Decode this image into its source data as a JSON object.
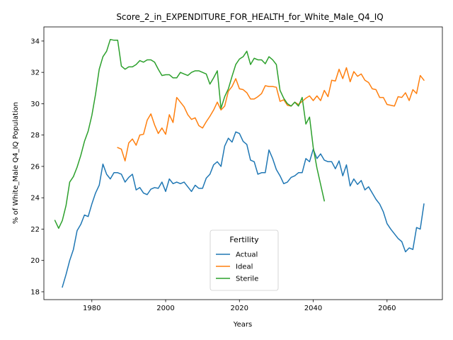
{
  "chart_data": {
    "type": "line",
    "title": "Score_2_in_EXPENDITURE_FOR_HEALTH_for_White_Male_Q4_IQ",
    "xlabel": "Years",
    "ylabel": "% of White_Male Q4_IQ Population",
    "xlim": [
      1967,
      2075
    ],
    "ylim": [
      17.5,
      34.9
    ],
    "xticks": [
      1980,
      2000,
      2020,
      2040,
      2060
    ],
    "yticks": [
      18,
      20,
      22,
      24,
      26,
      28,
      30,
      32,
      34
    ],
    "grid": false,
    "legend": {
      "title": "Fertility",
      "placement": "lower-center"
    },
    "series": [
      {
        "name": "Actual",
        "color": "#1f77b4",
        "x": [
          1972,
          1973,
          1974,
          1975,
          1976,
          1977,
          1978,
          1979,
          1980,
          1981,
          1982,
          1983,
          1984,
          1985,
          1986,
          1987,
          1988,
          1989,
          1990,
          1991,
          1992,
          1993,
          1994,
          1995,
          1996,
          1997,
          1998,
          1999,
          2000,
          2001,
          2002,
          2003,
          2004,
          2005,
          2006,
          2007,
          2008,
          2009,
          2010,
          2011,
          2012,
          2013,
          2014,
          2015,
          2016,
          2017,
          2018,
          2019,
          2020,
          2021,
          2022,
          2023,
          2024,
          2025,
          2026,
          2027,
          2028,
          2029,
          2030,
          2031,
          2032,
          2033,
          2034,
          2035,
          2036,
          2037,
          2038,
          2039,
          2040,
          2041,
          2042,
          2043,
          2044,
          2045,
          2046,
          2047,
          2048,
          2049,
          2050,
          2051,
          2052,
          2053,
          2054,
          2055,
          2056,
          2057,
          2058,
          2059,
          2060,
          2061,
          2062,
          2063,
          2064,
          2065,
          2066,
          2067,
          2068,
          2069,
          2070
        ],
        "values": [
          18.3,
          19.1,
          20.0,
          20.7,
          21.9,
          22.3,
          22.9,
          22.8,
          23.6,
          24.3,
          24.8,
          26.15,
          25.5,
          25.2,
          25.6,
          25.6,
          25.5,
          25.0,
          25.3,
          25.5,
          24.5,
          24.65,
          24.3,
          24.2,
          24.55,
          24.65,
          24.6,
          25.0,
          24.4,
          25.2,
          24.9,
          25.0,
          24.9,
          25.0,
          24.7,
          24.4,
          24.8,
          24.6,
          24.6,
          25.25,
          25.5,
          26.1,
          26.3,
          26.0,
          27.3,
          27.8,
          27.55,
          28.2,
          28.1,
          27.6,
          27.4,
          26.4,
          26.3,
          25.5,
          25.6,
          25.6,
          27.05,
          26.5,
          25.8,
          25.4,
          24.9,
          25.0,
          25.3,
          25.4,
          25.6,
          25.6,
          26.5,
          26.3,
          27.1,
          26.5,
          26.8,
          26.4,
          26.3,
          26.3,
          25.85,
          26.35,
          25.4,
          26.1,
          24.75,
          25.2,
          24.85,
          25.1,
          24.5,
          24.7,
          24.3,
          23.9,
          23.6,
          23.1,
          22.35,
          22.0,
          21.7,
          21.4,
          21.2,
          20.55,
          20.8,
          20.7,
          22.1,
          22.0,
          23.6
        ]
      },
      {
        "name": "Ideal",
        "color": "#ff7f0e",
        "x": [
          1987,
          1988,
          1989,
          1990,
          1991,
          1992,
          1993,
          1994,
          1995,
          1996,
          1997,
          1998,
          1999,
          2000,
          2001,
          2002,
          2003,
          2004,
          2005,
          2006,
          2007,
          2008,
          2009,
          2010,
          2011,
          2012,
          2013,
          2014,
          2015,
          2016,
          2017,
          2018,
          2019,
          2020,
          2021,
          2022,
          2023,
          2024,
          2025,
          2026,
          2027,
          2028,
          2029,
          2030,
          2031,
          2032,
          2033,
          2034,
          2035,
          2036,
          2037,
          2038,
          2039,
          2040,
          2041,
          2042,
          2043,
          2044,
          2045,
          2046,
          2047,
          2048,
          2049,
          2050,
          2051,
          2052,
          2053,
          2054,
          2055,
          2056,
          2057,
          2058,
          2059,
          2060,
          2061,
          2062,
          2063,
          2064,
          2065,
          2066,
          2067,
          2068,
          2069,
          2070
        ],
        "values": [
          27.2,
          27.1,
          26.35,
          27.5,
          27.75,
          27.35,
          28.0,
          28.05,
          28.95,
          29.35,
          28.65,
          28.1,
          28.45,
          28.05,
          29.3,
          28.8,
          30.4,
          30.1,
          29.8,
          29.3,
          29.0,
          29.1,
          28.6,
          28.45,
          28.85,
          29.2,
          29.6,
          30.1,
          29.6,
          29.85,
          30.8,
          31.1,
          31.6,
          30.95,
          30.9,
          30.7,
          30.3,
          30.3,
          30.45,
          30.65,
          31.15,
          31.1,
          31.1,
          31.05,
          30.15,
          30.25,
          29.9,
          29.85,
          30.1,
          29.95,
          30.15,
          30.35,
          30.5,
          30.2,
          30.5,
          30.2,
          30.85,
          30.45,
          31.5,
          31.45,
          32.2,
          31.6,
          32.3,
          31.4,
          32.05,
          31.75,
          31.9,
          31.5,
          31.35,
          30.95,
          30.9,
          30.4,
          30.4,
          29.95,
          29.9,
          29.85,
          30.45,
          30.4,
          30.7,
          30.2,
          30.9,
          30.65,
          31.8,
          31.5
        ]
      },
      {
        "name": "Sterile",
        "color": "#2ca02c",
        "x": [
          1970,
          1971,
          1972,
          1973,
          1974,
          1975,
          1976,
          1977,
          1978,
          1979,
          1980,
          1981,
          1982,
          1983,
          1984,
          1985,
          1986,
          1987,
          1988,
          1989,
          1990,
          1991,
          1992,
          1993,
          1994,
          1995,
          1996,
          1997,
          1998,
          1999,
          2000,
          2001,
          2002,
          2003,
          2004,
          2005,
          2006,
          2007,
          2008,
          2009,
          2010,
          2011,
          2012,
          2013,
          2014,
          2015,
          2016,
          2017,
          2018,
          2019,
          2020,
          2021,
          2022,
          2023,
          2024,
          2025,
          2026,
          2027,
          2028,
          2029,
          2030,
          2031,
          2032,
          2033,
          2034,
          2035,
          2036,
          2037,
          2038,
          2039,
          2040,
          2041,
          2042,
          2043
        ],
        "values": [
          22.55,
          22.05,
          22.55,
          23.5,
          25.0,
          25.35,
          25.95,
          26.7,
          27.6,
          28.25,
          29.25,
          30.6,
          32.2,
          33.0,
          33.35,
          34.1,
          34.05,
          34.05,
          32.4,
          32.2,
          32.35,
          32.35,
          32.5,
          32.75,
          32.65,
          32.8,
          32.8,
          32.65,
          32.2,
          31.8,
          31.85,
          31.85,
          31.65,
          31.65,
          32.0,
          31.9,
          31.8,
          32.0,
          32.1,
          32.1,
          32.0,
          31.9,
          31.25,
          31.65,
          32.1,
          29.7,
          30.45,
          30.95,
          31.75,
          32.5,
          32.85,
          33.0,
          33.35,
          32.5,
          32.9,
          32.8,
          32.8,
          32.55,
          33.0,
          32.8,
          32.5,
          30.85,
          30.35,
          30.0,
          29.85,
          30.1,
          29.85,
          30.4,
          28.7,
          29.15,
          27.2,
          25.9,
          24.85,
          23.8
        ]
      }
    ]
  }
}
